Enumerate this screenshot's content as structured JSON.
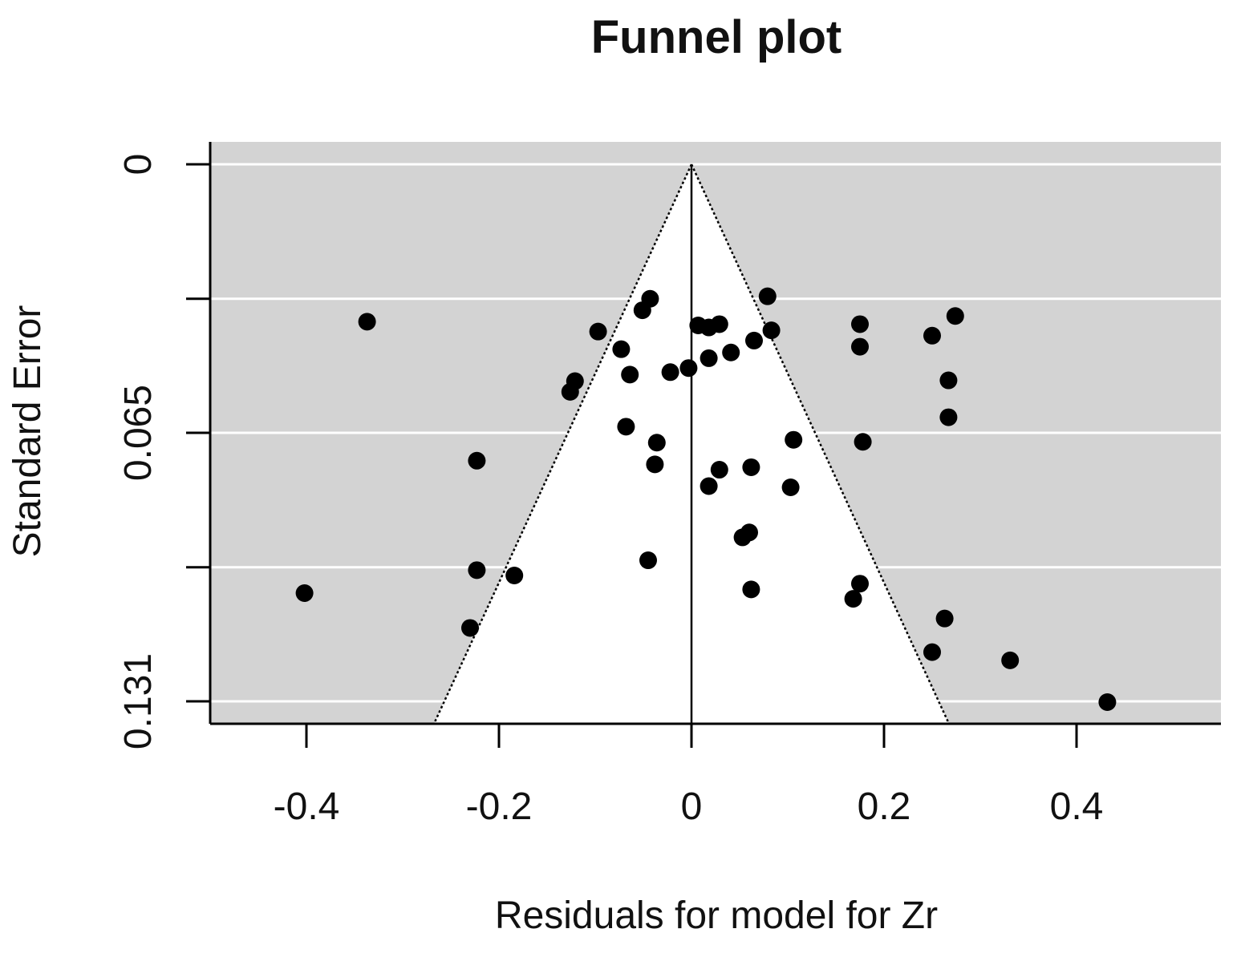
{
  "chart_data": {
    "type": "scatter",
    "title": "Funnel plot",
    "xlabel": "Residuals for model for Zr",
    "ylabel": "Standard Error",
    "xlim": [
      -0.5,
      0.55
    ],
    "ylim": [
      0,
      0.131
    ],
    "y_reversed": true,
    "x_ticks": [
      -0.4,
      -0.2,
      0,
      0.2,
      0.4
    ],
    "x_tick_labels": [
      "-0.4",
      "-0.2",
      "0",
      "0.2",
      "0.4"
    ],
    "y_ticks": [
      0,
      0.0328,
      0.0655,
      0.0983,
      0.131
    ],
    "y_tick_labels": [
      "0",
      "",
      "0.065",
      "",
      "0.131"
    ],
    "grid": true,
    "background_color": "#d3d3d3",
    "funnel_region_color": "#ffffff",
    "point_color": "#000000",
    "funnel": {
      "center": 0,
      "z": 1.96,
      "line_style": "dotted"
    },
    "points": [
      {
        "x": -0.337,
        "y": 0.0384
      },
      {
        "x": -0.402,
        "y": 0.1046
      },
      {
        "x": -0.223,
        "y": 0.0723
      },
      {
        "x": -0.223,
        "y": 0.099
      },
      {
        "x": -0.23,
        "y": 0.1131
      },
      {
        "x": -0.184,
        "y": 0.1003
      },
      {
        "x": -0.126,
        "y": 0.0555
      },
      {
        "x": -0.121,
        "y": 0.0529
      },
      {
        "x": -0.097,
        "y": 0.0408
      },
      {
        "x": -0.073,
        "y": 0.0451
      },
      {
        "x": -0.068,
        "y": 0.064
      },
      {
        "x": -0.064,
        "y": 0.0513
      },
      {
        "x": -0.051,
        "y": 0.0356
      },
      {
        "x": -0.043,
        "y": 0.0328
      },
      {
        "x": -0.045,
        "y": 0.0966
      },
      {
        "x": -0.036,
        "y": 0.0679
      },
      {
        "x": -0.038,
        "y": 0.0732
      },
      {
        "x": -0.022,
        "y": 0.0507
      },
      {
        "x": -0.003,
        "y": 0.0497
      },
      {
        "x": 0.007,
        "y": 0.0393
      },
      {
        "x": 0.018,
        "y": 0.0398
      },
      {
        "x": 0.029,
        "y": 0.039
      },
      {
        "x": 0.018,
        "y": 0.0473
      },
      {
        "x": 0.041,
        "y": 0.0459
      },
      {
        "x": 0.065,
        "y": 0.043
      },
      {
        "x": 0.079,
        "y": 0.0322
      },
      {
        "x": 0.083,
        "y": 0.0405
      },
      {
        "x": 0.018,
        "y": 0.0785
      },
      {
        "x": 0.029,
        "y": 0.0745
      },
      {
        "x": 0.062,
        "y": 0.0739
      },
      {
        "x": 0.103,
        "y": 0.0788
      },
      {
        "x": 0.106,
        "y": 0.0672
      },
      {
        "x": 0.053,
        "y": 0.091
      },
      {
        "x": 0.06,
        "y": 0.0898
      },
      {
        "x": 0.062,
        "y": 0.1037
      },
      {
        "x": 0.175,
        "y": 0.039
      },
      {
        "x": 0.175,
        "y": 0.0445
      },
      {
        "x": 0.178,
        "y": 0.0677
      },
      {
        "x": 0.175,
        "y": 0.1023
      },
      {
        "x": 0.168,
        "y": 0.106
      },
      {
        "x": 0.25,
        "y": 0.0418
      },
      {
        "x": 0.274,
        "y": 0.037
      },
      {
        "x": 0.267,
        "y": 0.0527
      },
      {
        "x": 0.267,
        "y": 0.0617
      },
      {
        "x": 0.263,
        "y": 0.1108
      },
      {
        "x": 0.25,
        "y": 0.119
      },
      {
        "x": 0.331,
        "y": 0.121
      },
      {
        "x": 0.432,
        "y": 0.1312
      }
    ]
  }
}
